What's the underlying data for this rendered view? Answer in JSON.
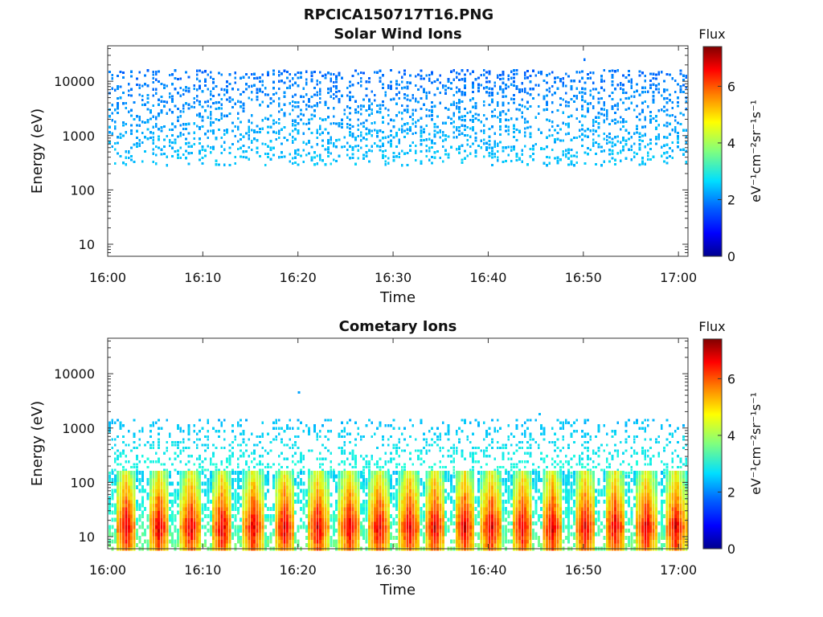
{
  "figure_title": "RPCICA150717T16.PNG",
  "colors": {
    "colormap": [
      "#00008f",
      "#0000ff",
      "#0060ff",
      "#00c0ff",
      "#20ffdf",
      "#7fff7f",
      "#dfff20",
      "#ffc000",
      "#ff6000",
      "#ff0000",
      "#800000"
    ]
  },
  "chart_data": [
    {
      "type": "heatmap",
      "title": "Solar Wind Ions",
      "xlabel": "Time",
      "ylabel": "Energy (eV)",
      "x_ticks": [
        "16:00",
        "16:10",
        "16:20",
        "16:30",
        "16:40",
        "16:50",
        "17:00"
      ],
      "x_range_minutes": [
        0,
        61
      ],
      "y_scale": "log",
      "y_ticks": [
        "10",
        "100",
        "1000",
        "10000"
      ],
      "y_range": [
        6,
        45000
      ],
      "colorbar": {
        "title": "Flux",
        "label": "eV⁻¹cm⁻²sr⁻¹s⁻¹",
        "ticks": [
          "0",
          "2",
          "4",
          "6"
        ],
        "range": [
          0,
          7.4
        ]
      },
      "content": {
        "energy_band": [
          300,
          15000
        ],
        "flux_level_high_energy": 1.6,
        "flux_level_low_energy": 2.3,
        "outlier": {
          "time_min": 50,
          "energy": 25000,
          "flux": 1.6
        }
      }
    },
    {
      "type": "heatmap",
      "title": "Cometary Ions",
      "xlabel": "Time",
      "ylabel": "Energy (eV)",
      "x_ticks": [
        "16:00",
        "16:10",
        "16:20",
        "16:30",
        "16:40",
        "16:50",
        "17:00"
      ],
      "x_range_minutes": [
        0,
        61
      ],
      "y_scale": "log",
      "y_ticks": [
        "10",
        "100",
        "1000",
        "10000"
      ],
      "y_range": [
        6,
        45000
      ],
      "colorbar": {
        "title": "Flux",
        "label": "eV⁻¹cm⁻²sr⁻¹s⁻¹",
        "ticks": [
          "0",
          "2",
          "4",
          "6"
        ],
        "range": [
          0,
          7.4
        ]
      },
      "content": {
        "sparse_band": [
          150,
          1400
        ],
        "sparse_flux": 2.2,
        "dense_low_energy_band": [
          6,
          150
        ],
        "burst_times_min": [
          1.8,
          5.3,
          8.6,
          11.9,
          15.2,
          18.5,
          22.0,
          25.3,
          28.4,
          31.6,
          34.3,
          37.4,
          40.2,
          43.5,
          46.6,
          50.1,
          53.2,
          56.5,
          59.6
        ],
        "burst_peak_energy": 15,
        "burst_peak_flux": 7.0,
        "outliers": [
          {
            "time_min": 20,
            "energy": 4500,
            "flux": 2.0
          },
          {
            "time_min": 45.3,
            "energy": 1800,
            "flux": 2.2
          }
        ]
      }
    }
  ]
}
